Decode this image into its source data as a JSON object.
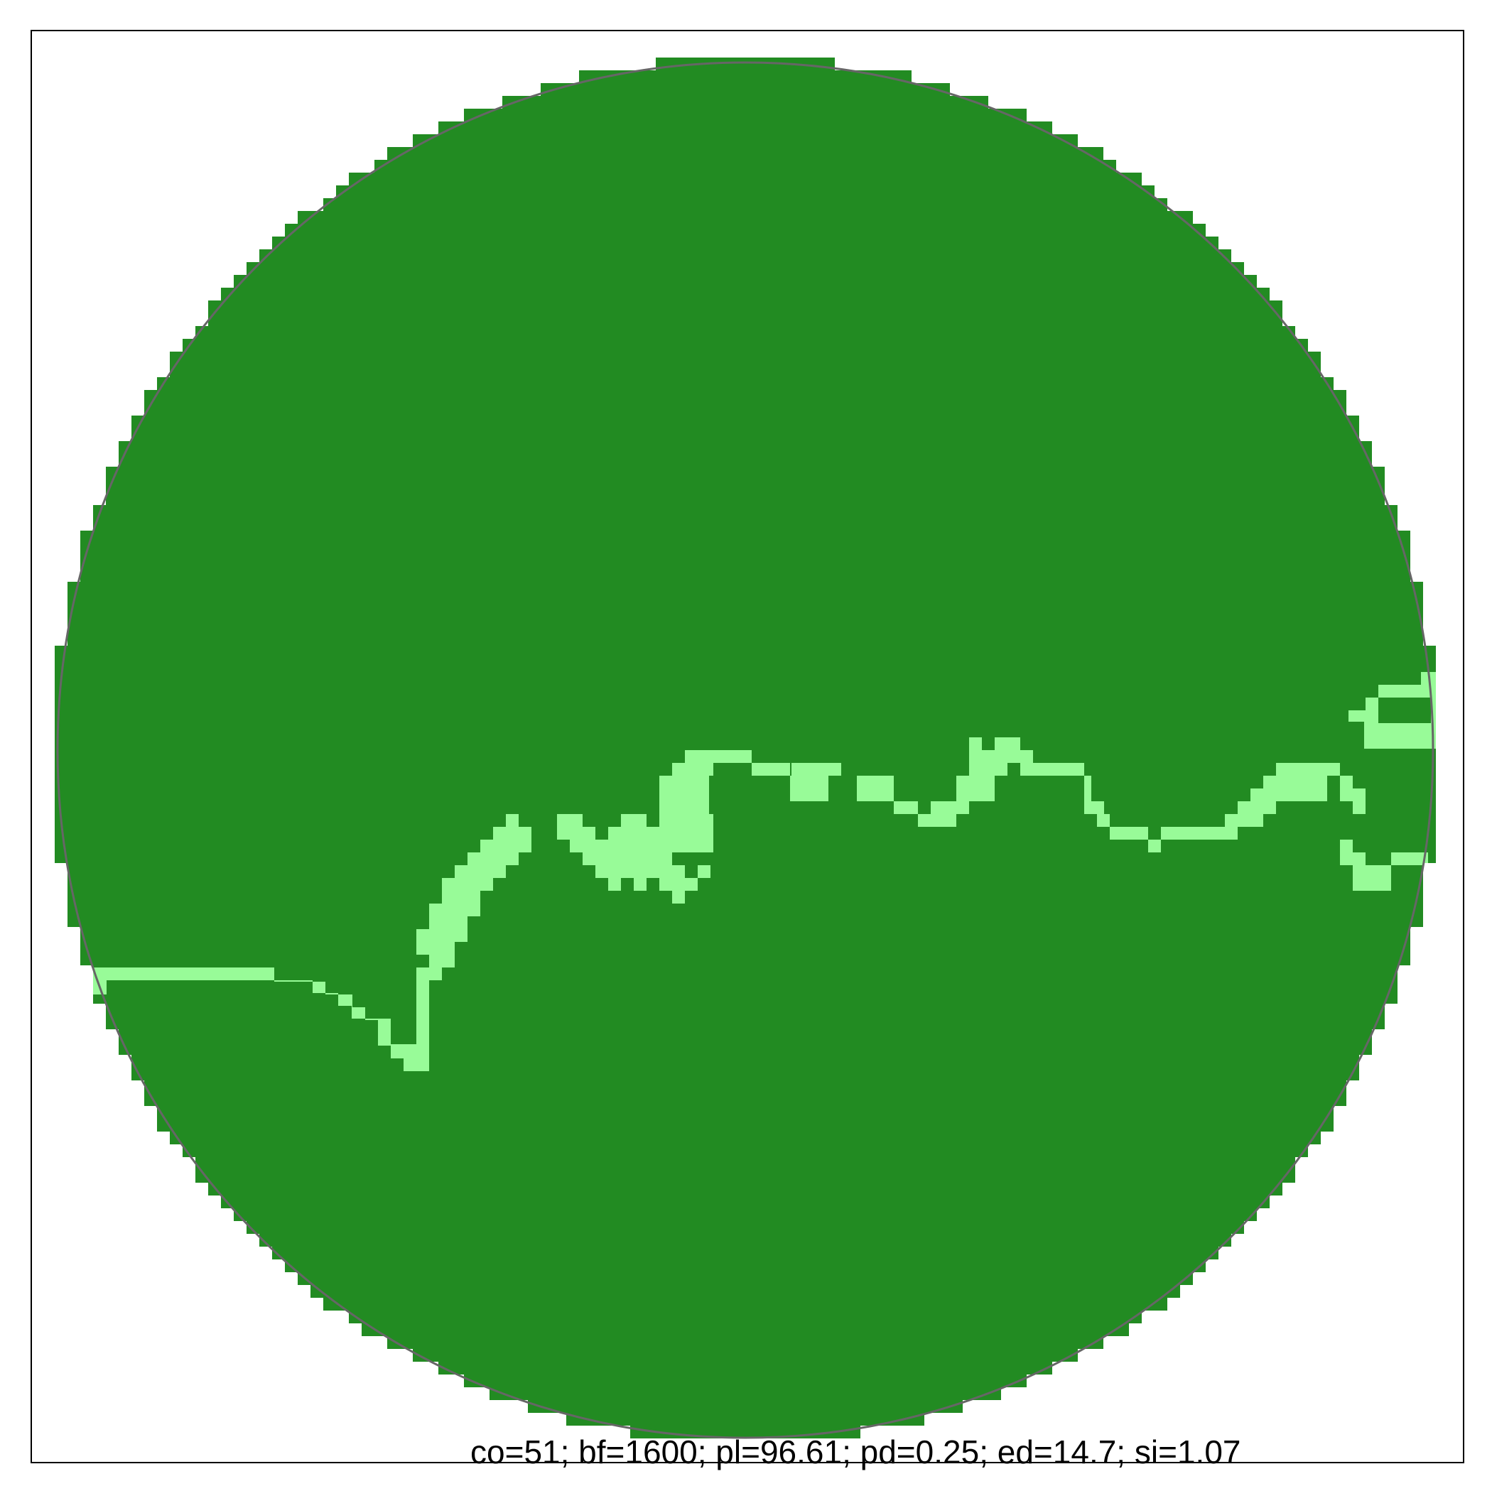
{
  "colors": {
    "background": "#ffffff",
    "frame": "#000000",
    "boundary": "#666666",
    "habitat": "#228b22",
    "corridor": "#98fb98"
  },
  "caption": "co=51; bf=1600; pl=96.61; pd=0.25; ed=14.7; si=1.07"
}
